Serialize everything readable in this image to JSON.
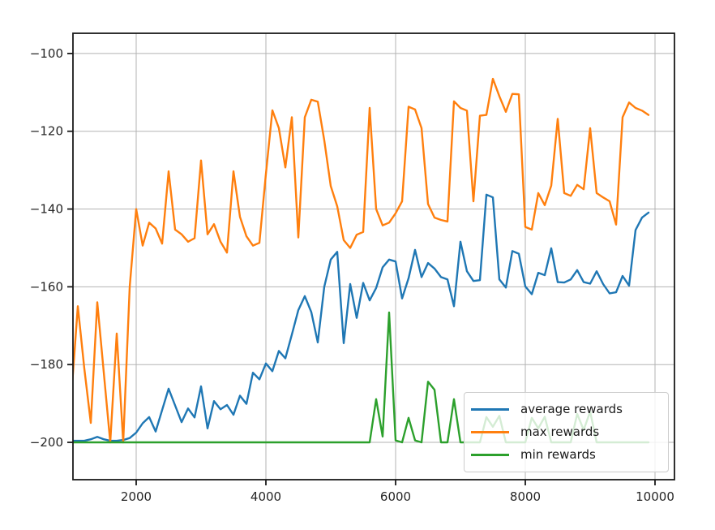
{
  "chart_data": {
    "type": "line",
    "title": "",
    "xlabel": "",
    "ylabel": "",
    "grid": true,
    "legend": {
      "position": "lower right",
      "entries": [
        "average rewards",
        "max rewards",
        "min rewards"
      ]
    },
    "xlim": [
      1025,
      10300
    ],
    "ylim": [
      -209.6,
      -94.8
    ],
    "xticks": {
      "values": [
        2000,
        4000,
        6000,
        8000,
        10000
      ],
      "labels": [
        "2000",
        "4000",
        "6000",
        "8000",
        "10000"
      ]
    },
    "yticks": {
      "values": [
        -100,
        -120,
        -140,
        -160,
        -180,
        -200
      ],
      "labels": [
        "−100",
        "−120",
        "−140",
        "−160",
        "−180",
        "−200"
      ]
    },
    "x": [
      1000,
      1100,
      1200,
      1300,
      1400,
      1500,
      1600,
      1700,
      1800,
      1900,
      2000,
      2100,
      2200,
      2300,
      2400,
      2500,
      2600,
      2700,
      2800,
      2900,
      3000,
      3100,
      3200,
      3300,
      3400,
      3500,
      3600,
      3700,
      3800,
      3900,
      4000,
      4100,
      4200,
      4300,
      4400,
      4500,
      4600,
      4700,
      4800,
      4900,
      5000,
      5100,
      5200,
      5300,
      5400,
      5500,
      5600,
      5700,
      5800,
      5900,
      6000,
      6100,
      6200,
      6300,
      6400,
      6500,
      6600,
      6700,
      6800,
      6900,
      7000,
      7100,
      7200,
      7300,
      7400,
      7500,
      7600,
      7700,
      7800,
      7900,
      8000,
      8100,
      8200,
      8300,
      8400,
      8500,
      8600,
      8700,
      8800,
      8900,
      9000,
      9100,
      9200,
      9300,
      9400,
      9500,
      9600,
      9700,
      9800,
      9900
    ],
    "series": [
      {
        "name": "average rewards",
        "color": "#1f77b4",
        "values": [
          -199.6,
          -199.6,
          -199.6,
          -199.2,
          -198.6,
          -199.2,
          -199.6,
          -199.6,
          -199.4,
          -198.9,
          -197.5,
          -195.1,
          -193.5,
          -197.2,
          -191.7,
          -186.2,
          -190.5,
          -194.8,
          -191.3,
          -193.6,
          -185.6,
          -196.4,
          -189.4,
          -191.5,
          -190.4,
          -192.9,
          -188.0,
          -190.1,
          -182.1,
          -183.8,
          -179.7,
          -181.7,
          -176.5,
          -178.4,
          -172.3,
          -166.0,
          -162.4,
          -166.5,
          -174.3,
          -160.0,
          -153.0,
          -151.0,
          -174.5,
          -159.3,
          -168.0,
          -159.0,
          -163.5,
          -160.3,
          -155.0,
          -153.0,
          -153.5,
          -163.0,
          -157.8,
          -150.5,
          -157.5,
          -153.9,
          -155.3,
          -157.5,
          -158.1,
          -165.0,
          -148.4,
          -156.0,
          -158.5,
          -158.3,
          -136.3,
          -137.0,
          -158.1,
          -160.2,
          -150.8,
          -151.5,
          -159.9,
          -161.9,
          -156.4,
          -157.0,
          -150.1,
          -158.8,
          -158.9,
          -158.1,
          -155.7,
          -158.8,
          -159.2,
          -156.0,
          -159.3,
          -161.7,
          -161.4,
          -157.2,
          -159.7,
          -145.4,
          -142.2,
          -140.9
        ]
      },
      {
        "name": "max rewards",
        "color": "#ff7f0e",
        "values": [
          -188,
          -165,
          -181,
          -195,
          -164,
          -182,
          -200,
          -172,
          -200,
          -160,
          -140,
          -149.4,
          -143.5,
          -145.0,
          -148.9,
          -130.3,
          -145.3,
          -146.5,
          -148.4,
          -147.5,
          -127.5,
          -146.5,
          -143.9,
          -148.4,
          -151.2,
          -130.3,
          -142.0,
          -147.0,
          -149.4,
          -148.7,
          -131.0,
          -114.6,
          -119.2,
          -129.3,
          -116.4,
          -147.3,
          -116.4,
          -111.9,
          -112.4,
          -122.3,
          -134.1,
          -139.3,
          -148.0,
          -150.0,
          -146.6,
          -145.9,
          -114.0,
          -140.0,
          -144.2,
          -143.5,
          -141.1,
          -138.0,
          -113.7,
          -114.4,
          -119.2,
          -138.7,
          -142.2,
          -142.8,
          -143.2,
          -112.3,
          -114.0,
          -114.7,
          -138.0,
          -116.0,
          -115.8,
          -106.5,
          -111.0,
          -115.0,
          -110.4,
          -110.5,
          -144.6,
          -145.3,
          -135.9,
          -139.0,
          -134.0,
          -116.8,
          -135.9,
          -136.6,
          -133.8,
          -134.9,
          -119.2,
          -135.9,
          -137.0,
          -138.0,
          -144.0,
          -116.4,
          -112.6,
          -114.0,
          -114.7,
          -115.8
        ]
      },
      {
        "name": "min rewards",
        "color": "#2ca02c",
        "values": [
          -200,
          -200,
          -200,
          -200,
          -200,
          -200,
          -200,
          -200,
          -200,
          -200,
          -200,
          -200,
          -200,
          -200,
          -200,
          -200,
          -200,
          -200,
          -200,
          -200,
          -200,
          -200,
          -200,
          -200,
          -200,
          -200,
          -200,
          -200,
          -200,
          -200,
          -200,
          -200,
          -200,
          -200,
          -200,
          -200,
          -200,
          -200,
          -200,
          -200,
          -200,
          -200,
          -200,
          -200,
          -200,
          -200,
          -200,
          -188.9,
          -198.5,
          -166.6,
          -199.5,
          -200,
          -193.7,
          -199.5,
          -200,
          -184.4,
          -186.5,
          -200,
          -200,
          -188.9,
          -200,
          -200,
          -200,
          -200,
          -193.5,
          -196.0,
          -193.2,
          -200,
          -200,
          -200,
          -200,
          -193.7,
          -196.4,
          -193.4,
          -200,
          -200,
          -200,
          -200,
          -192.7,
          -196.8,
          -192.1,
          -200,
          -200,
          -200,
          -200,
          -200,
          -200,
          -200,
          -200,
          -200
        ]
      }
    ]
  }
}
